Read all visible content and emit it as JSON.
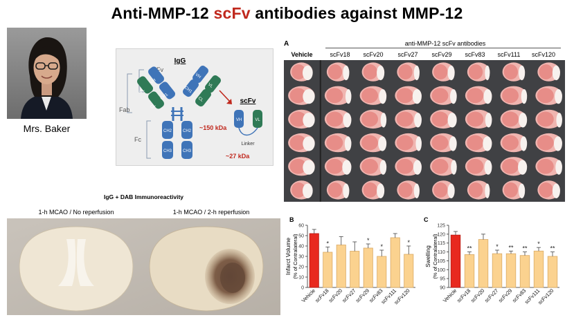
{
  "slide": {
    "title_part1": "Anti-MMP-12 ",
    "title_accent": "scFv",
    "title_part2": " antibodies against MMP-12",
    "accent_color": "#c0281d"
  },
  "speaker": {
    "name": "Mrs. Baker"
  },
  "diagram": {
    "igg_label": "IgG",
    "fv_label": "Fv",
    "fab_label": "Fab",
    "fc_label": "Fc",
    "igg_mass": "~150 kDa",
    "scfv_label": "scFv",
    "linker_label": "Linker",
    "scfv_mass": "~27 kDa",
    "domain_vh": "VH",
    "domain_vl": "VL",
    "domain_ch1": "CH1",
    "domain_cl": "CL",
    "domain_ch2": "CH2",
    "domain_ch3": "CH3",
    "heavy_color": "#3f74b8",
    "light_color": "#2f7a56",
    "mass_color": "#c0281d"
  },
  "immuno": {
    "title": "IgG + DAB Immunoreactivity",
    "label_left": "1-h MCAO / No reperfusion",
    "label_right": "1-h MCAO / 2-h reperfusion"
  },
  "panel_a": {
    "letter": "A",
    "group_title": "anti-MMP-12 scFv antibodies",
    "columns": [
      "Vehicle",
      "scFv18",
      "scFv20",
      "scFv27",
      "scFv29",
      "scFv83",
      "scFv111",
      "scFv120"
    ],
    "rows": 6
  },
  "chart_data": [
    {
      "panel": "B",
      "type": "bar",
      "ylabel_line1": "Infarct Volume",
      "ylabel_line2": "(% of Contralateral)",
      "categories": [
        "Vehicle",
        "scFv18",
        "scFv20",
        "scFv27",
        "scFv29",
        "scFv83",
        "scFv111",
        "scFv120"
      ],
      "values": [
        52,
        34,
        41,
        35,
        38,
        30,
        48,
        32
      ],
      "errors": [
        4,
        5,
        8,
        9,
        4,
        6,
        4,
        8
      ],
      "significance": [
        "",
        "*",
        "",
        "",
        "*",
        "*",
        "",
        "*"
      ],
      "ylim": [
        0,
        60
      ],
      "yticks": [
        0,
        10,
        20,
        30,
        40,
        50,
        60
      ],
      "vehicle_color": "#e8291f",
      "treated_color": "#fbd28f"
    },
    {
      "panel": "C",
      "type": "bar",
      "ylabel_line1": "Swelling",
      "ylabel_line2": "(% of Contralateral)",
      "categories": [
        "Vehicle",
        "scFv18",
        "scFv20",
        "scFv27",
        "scFv29",
        "scFv83",
        "scFv111",
        "scFv120"
      ],
      "values": [
        119.5,
        108.5,
        117,
        109,
        109,
        108,
        110.5,
        107.5
      ],
      "errors": [
        2,
        1.5,
        3,
        2,
        1.5,
        2,
        2,
        2.5
      ],
      "significance": [
        "",
        "**",
        "",
        "*",
        "**",
        "**",
        "*",
        "**"
      ],
      "ylim": [
        90,
        125
      ],
      "yticks": [
        90,
        95,
        100,
        105,
        110,
        115,
        120,
        125
      ],
      "vehicle_color": "#e8291f",
      "treated_color": "#fbd28f"
    }
  ]
}
